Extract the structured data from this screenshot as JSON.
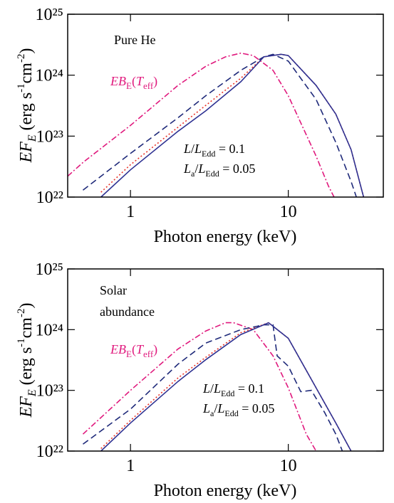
{
  "chart_data": [
    {
      "type": "line",
      "xscale": "log",
      "yscale": "log",
      "xlabel": "Photon energy (keV)",
      "ylabel": [
        "EF",
        "E",
        " (erg s",
        "-1",
        "cm",
        "-2",
        ")"
      ],
      "xlim": [
        0.4,
        40
      ],
      "ylim": [
        1e+22,
        1e+25
      ],
      "xticks": [
        1,
        10
      ],
      "yticks": [
        {
          "value": 1e+22,
          "label": "10²²"
        },
        {
          "value": 1e+23,
          "label": "10²³"
        },
        {
          "value": 1e+24,
          "label": "10²⁴"
        },
        {
          "value": 1e+25,
          "label": "10²⁵"
        }
      ],
      "series": [
        {
          "color": "#e0197d",
          "linestyle": "dashdot",
          "x": [
            0.4,
            0.5,
            1,
            2,
            3,
            4,
            5,
            6,
            8,
            10,
            15,
            18,
            19.5
          ],
          "values": [
            2.2e+22,
            3.7e+22,
            1.5e+23,
            6.8e+23,
            1.4e+24,
            2e+24,
            2.3e+24,
            2.1e+24,
            1.2e+24,
            4.6e+23,
            4.7e+22,
            1.5e+22,
            1e+22
          ]
        },
        {
          "color": "#e8342a",
          "linestyle": "dotted",
          "x": [
            0.65,
            1,
            2,
            3,
            5,
            7,
            9,
            10,
            15,
            20,
            25,
            30
          ],
          "values": [
            1.2e+22,
            3.4e+22,
            1.4e+23,
            3.2e+23,
            8.9e+23,
            2e+24,
            2.2e+24,
            2.1e+24,
            6.8e+23,
            2.3e+23,
            6e+22,
            1e+22
          ]
        },
        {
          "color": "#1f2a7a",
          "linestyle": "dashed",
          "x": [
            0.5,
            1,
            2,
            3,
            5,
            7,
            8,
            10,
            15,
            20,
            25,
            27
          ],
          "values": [
            1.3e+22,
            5.2e+22,
            2e+23,
            4.6e+23,
            1.2e+24,
            2e+24,
            2.2e+24,
            1.7e+24,
            4e+23,
            7.9e+22,
            1.8e+22,
            1e+22
          ]
        },
        {
          "color": "#2e3192",
          "linestyle": "solid",
          "x": [
            0.65,
            1,
            2,
            3,
            5,
            7,
            9,
            10,
            15,
            20,
            25,
            30
          ],
          "values": [
            1e+22,
            2.8e+22,
            1.2e+23,
            2.6e+23,
            7.8e+23,
            2e+24,
            2.2e+24,
            2.1e+24,
            6.8e+23,
            2.3e+23,
            6e+22,
            1e+22
          ]
        }
      ],
      "annotations": [
        {
          "parts": [
            "Pure He"
          ]
        },
        {
          "parts": [
            "EB",
            "E",
            "(",
            "T",
            "eff",
            ")"
          ],
          "color": "#e0197d"
        },
        {
          "parts": [
            "L",
            "/",
            "L",
            "Edd",
            " = 0.1"
          ]
        },
        {
          "parts": [
            "L",
            "a",
            "/",
            "L",
            "Edd",
            " = 0.05"
          ]
        }
      ]
    },
    {
      "type": "line",
      "xscale": "log",
      "yscale": "log",
      "xlabel": "Photon energy (keV)",
      "ylabel": [
        "EF",
        "E",
        " (erg s",
        "-1",
        "cm",
        "-2",
        ")"
      ],
      "xlim": [
        0.4,
        40
      ],
      "ylim": [
        1e+22,
        1e+25
      ],
      "xticks": [
        1,
        10
      ],
      "yticks": [
        {
          "value": 1e+22,
          "label": "10²²"
        },
        {
          "value": 1e+23,
          "label": "10²³"
        },
        {
          "value": 1e+24,
          "label": "10²⁴"
        },
        {
          "value": 1e+25,
          "label": "10²⁵"
        }
      ],
      "series": [
        {
          "color": "#e0197d",
          "linestyle": "dashdot",
          "x": [
            0.5,
            1,
            2,
            3,
            4,
            4.5,
            6,
            8,
            10,
            13,
            15
          ],
          "values": [
            1.9e+22,
            1e+23,
            4.8e+23,
            9.5e+23,
            1.3e+24,
            1.3e+24,
            1e+24,
            3.7e+23,
            1.1e+23,
            1.9e+22,
            1e+22
          ]
        },
        {
          "color": "#e8342a",
          "linestyle": "dotted",
          "x": [
            0.65,
            1,
            2,
            3,
            5,
            7.5,
            10,
            15,
            20,
            25
          ],
          "values": [
            1.1e+22,
            3.2e+22,
            1.6e+23,
            3.5e+23,
            8.9e+23,
            1.3e+24,
            7.2e+23,
            1.1e+23,
            2.9e+22,
            1e+22
          ]
        },
        {
          "color": "#1f2a7a",
          "linestyle": "dashed",
          "x": [
            0.5,
            1,
            2,
            3,
            5,
            7,
            8,
            8.5,
            10,
            12,
            14,
            17,
            20,
            22
          ],
          "values": [
            1.3e+22,
            4.9e+22,
            2.7e+23,
            6e+23,
            1e+24,
            1.2e+24,
            1.2e+24,
            3.7e+23,
            2.5e+23,
            9.5e+22,
            1e+23,
            4.3e+22,
            1.9e+22,
            1e+22
          ]
        },
        {
          "color": "#2e3192",
          "linestyle": "solid",
          "x": [
            0.65,
            1,
            2,
            3,
            5,
            7.5,
            10,
            15,
            20,
            25
          ],
          "values": [
            1e+22,
            2.9e+22,
            1.4e+23,
            3.2e+23,
            8.3e+23,
            1.3e+24,
            7.2e+23,
            1.1e+23,
            2.9e+22,
            1e+22
          ]
        }
      ],
      "annotations": [
        {
          "parts": [
            "Solar",
            "abundance"
          ]
        },
        {
          "parts": [
            "EB",
            "E",
            "(",
            "T",
            "eff",
            ")"
          ],
          "color": "#e0197d"
        },
        {
          "parts": [
            "L",
            "/",
            "L",
            "Edd",
            " = 0.1"
          ]
        },
        {
          "parts": [
            "L",
            "a",
            "/",
            "L",
            "Edd",
            " = 0.05"
          ]
        }
      ]
    }
  ]
}
